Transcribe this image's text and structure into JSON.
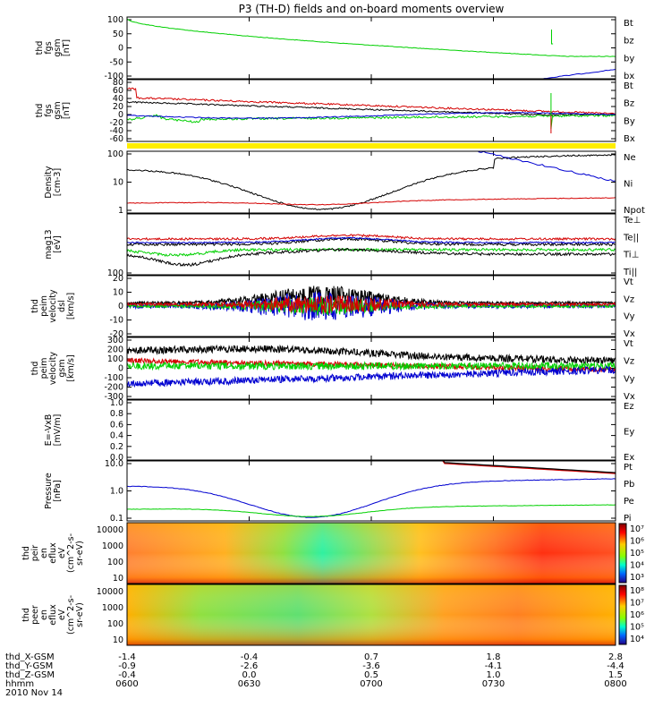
{
  "title": "P3 (TH-D) fields and on-board moments overview",
  "colors": {
    "black": "#000000",
    "red": "#d40000",
    "green": "#00d000",
    "blue": "#0000d0",
    "yellow": "#ffee00"
  },
  "chart_data": [
    {
      "type": "line",
      "ylabel": [
        "thd",
        "fgs",
        "gsm",
        "[nT]"
      ],
      "yticks": [
        "100",
        "50",
        "0",
        "-50",
        "-100"
      ],
      "ylim": [
        -100,
        100
      ],
      "series": [
        {
          "name": "Bt",
          "color": "black"
        },
        {
          "name": "bz",
          "color": "red"
        },
        {
          "name": "by",
          "color": "green"
        },
        {
          "name": "bx",
          "color": "blue"
        }
      ]
    },
    {
      "type": "line",
      "ylabel": [
        "thd",
        "fgs",
        "gsm",
        "[nT]"
      ],
      "yticks": [
        "80",
        "60",
        "40",
        "20",
        "0",
        "-20",
        "-40",
        "-60"
      ],
      "ylim": [
        -60,
        80
      ],
      "series": [
        {
          "name": "Bt",
          "color": "black"
        },
        {
          "name": "Bz",
          "color": "red"
        },
        {
          "name": "By",
          "color": "green"
        },
        {
          "name": "Bx",
          "color": "blue"
        }
      ]
    },
    {
      "type": "line",
      "ylabel": [
        "Density",
        "[cm-3]"
      ],
      "yticks": [
        "100",
        "10",
        "1"
      ],
      "log": true,
      "series": [
        {
          "name": "Ne",
          "color": "red"
        },
        {
          "name": "Ni",
          "color": "black"
        },
        {
          "name": "Npot",
          "color": "blue"
        }
      ]
    },
    {
      "type": "line",
      "ylabel": [
        "mag13",
        "[eV]"
      ],
      "yticks": [
        "100"
      ],
      "log": true,
      "series": [
        {
          "name": "Te⊥",
          "color": "red"
        },
        {
          "name": "Te||",
          "color": "black"
        },
        {
          "name": "Ti⊥",
          "color": "blue"
        },
        {
          "name": "Ti||",
          "color": "green"
        }
      ]
    },
    {
      "type": "line",
      "ylabel": [
        "thd",
        "peim",
        "velocity",
        "dsl",
        "[km/s]"
      ],
      "yticks": [
        "20",
        "10",
        "0",
        "-10",
        "-20"
      ],
      "ylim": [
        -20,
        20
      ],
      "series": [
        {
          "name": "Vt",
          "color": "black"
        },
        {
          "name": "Vz",
          "color": "red"
        },
        {
          "name": "Vy",
          "color": "green"
        },
        {
          "name": "Vx",
          "color": "blue"
        }
      ]
    },
    {
      "type": "line",
      "ylabel": [
        "thd",
        "peim",
        "velocity",
        "gsm",
        "[km/s]"
      ],
      "yticks": [
        "300",
        "200",
        "100",
        "0",
        "-100",
        "-200",
        "-300"
      ],
      "ylim": [
        -300,
        300
      ],
      "series": [
        {
          "name": "Vt",
          "color": "black"
        },
        {
          "name": "Vz",
          "color": "red"
        },
        {
          "name": "Vy",
          "color": "green"
        },
        {
          "name": "Vx",
          "color": "blue"
        }
      ]
    },
    {
      "type": "line",
      "ylabel": [
        "E=-VxB",
        "[mV/m]"
      ],
      "yticks": [
        "1.0",
        "0.8",
        "0.6",
        "0.4",
        "0.2",
        "0.0"
      ],
      "ylim": [
        0,
        1
      ],
      "series": [
        {
          "name": "Ez",
          "color": "red"
        },
        {
          "name": "Ey",
          "color": "green"
        },
        {
          "name": "Ex",
          "color": "blue"
        }
      ]
    },
    {
      "type": "line",
      "ylabel": [
        "Pressure",
        "[nPa]"
      ],
      "yticks": [
        "10.0",
        "1.0",
        "0.1"
      ],
      "log": true,
      "series": [
        {
          "name": "Pt",
          "color": "black"
        },
        {
          "name": "Pb",
          "color": "red"
        },
        {
          "name": "Pe",
          "color": "green"
        },
        {
          "name": "Pi",
          "color": "blue"
        }
      ]
    },
    {
      "type": "heatmap",
      "ylabel": [
        "thd",
        "peir",
        "en",
        "eflux",
        "eV",
        "(cm^2-s-",
        "sr-eV)"
      ],
      "yticks": [
        "10000",
        "1000",
        "100",
        "10"
      ],
      "log": true,
      "colorbar": [
        "10⁷",
        "10⁶",
        "10⁵",
        "10⁴",
        "10³"
      ]
    },
    {
      "type": "heatmap",
      "ylabel": [
        "thd",
        "peer",
        "en",
        "eflux",
        "eV",
        "(cm^2-s-",
        "sr-eV)"
      ],
      "yticks": [
        "10000",
        "1000",
        "100",
        "10"
      ],
      "log": true,
      "colorbar": [
        "10⁸",
        "10⁷",
        "10⁶",
        "10⁵",
        "10⁴"
      ]
    }
  ],
  "xaxis": {
    "rows": [
      {
        "label": "thd_X-GSM",
        "values": [
          "-1.4",
          "-0.4",
          "0.7",
          "1.8",
          "2.8"
        ]
      },
      {
        "label": "thd_Y-GSM",
        "values": [
          "-0.9",
          "-2.6",
          "-3.6",
          "-4.1",
          "-4.4"
        ]
      },
      {
        "label": "thd_Z-GSM",
        "values": [
          "-0.4",
          "0.0",
          "0.5",
          "1.0",
          "1.5"
        ]
      },
      {
        "label": "hhmm",
        "values": [
          "0600",
          "0630",
          "0700",
          "0730",
          "0800"
        ]
      }
    ],
    "date": "2010 Nov 14"
  }
}
